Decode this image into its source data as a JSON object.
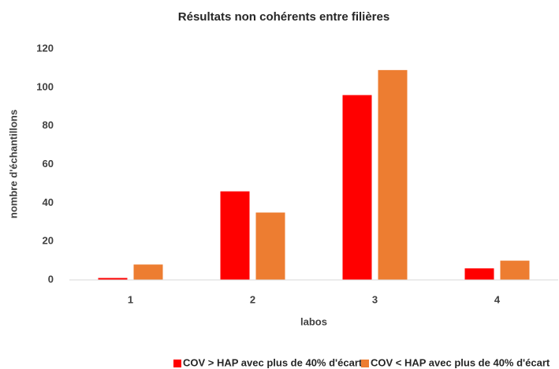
{
  "chart_data": {
    "type": "bar",
    "title": "Résultats non cohérents entre filières",
    "x_label": "labos",
    "y_label": "nombre d'échantillons",
    "categories": [
      "1",
      "2",
      "3",
      "4"
    ],
    "series": [
      {
        "name": "COV > HAP avec plus de 40% d'écart",
        "color": "#ff0000",
        "values": [
          1,
          46,
          96,
          6
        ]
      },
      {
        "name": "COV < HAP avec plus de 40% d'écart",
        "color": "#ed7d31",
        "values": [
          8,
          35,
          109,
          10
        ]
      }
    ],
    "ylim": [
      0,
      120
    ],
    "yticks": [
      0,
      20,
      40,
      60,
      80,
      100,
      120
    ],
    "grid": false,
    "legend": "bottom"
  }
}
